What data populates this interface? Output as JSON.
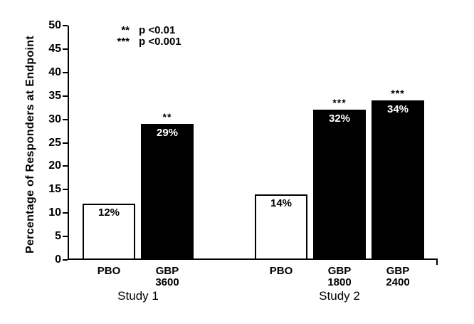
{
  "chart_data": {
    "type": "bar",
    "title": "",
    "ylabel": "Percentage of Responders at Endpoint",
    "xlabel": "",
    "ylim": [
      0,
      50
    ],
    "ytick_step": 5,
    "yticks": [
      0,
      5,
      10,
      15,
      20,
      25,
      30,
      35,
      40,
      45,
      50
    ],
    "grid": false,
    "legend": {
      "position": "top-left-inside",
      "entries": [
        {
          "symbol": "**",
          "text": "p <0.01"
        },
        {
          "symbol": "***",
          "text": "p <0.001"
        }
      ]
    },
    "groups": [
      {
        "name": "Study 1",
        "bars": [
          {
            "label_lines": [
              "PBO"
            ],
            "value": 12,
            "value_label": "12%",
            "fill": "placebo",
            "significance": ""
          },
          {
            "label_lines": [
              "GBP",
              "3600"
            ],
            "value": 29,
            "value_label": "29%",
            "fill": "active",
            "significance": "**"
          }
        ]
      },
      {
        "name": "Study 2",
        "bars": [
          {
            "label_lines": [
              "PBO"
            ],
            "value": 14,
            "value_label": "14%",
            "fill": "placebo",
            "significance": ""
          },
          {
            "label_lines": [
              "GBP",
              "1800"
            ],
            "value": 32,
            "value_label": "32%",
            "fill": "active",
            "significance": "***"
          },
          {
            "label_lines": [
              "GBP",
              "2400"
            ],
            "value": 34,
            "value_label": "34%",
            "fill": "active",
            "significance": "***"
          }
        ]
      }
    ],
    "colors": {
      "axis": "#000000",
      "placebo_bar_fill": "#ffffff",
      "active_bar_fill": "#000000",
      "bar_outline": "#000000",
      "value_label_on_dark": "#ffffff",
      "value_label_on_light": "#000000"
    }
  }
}
